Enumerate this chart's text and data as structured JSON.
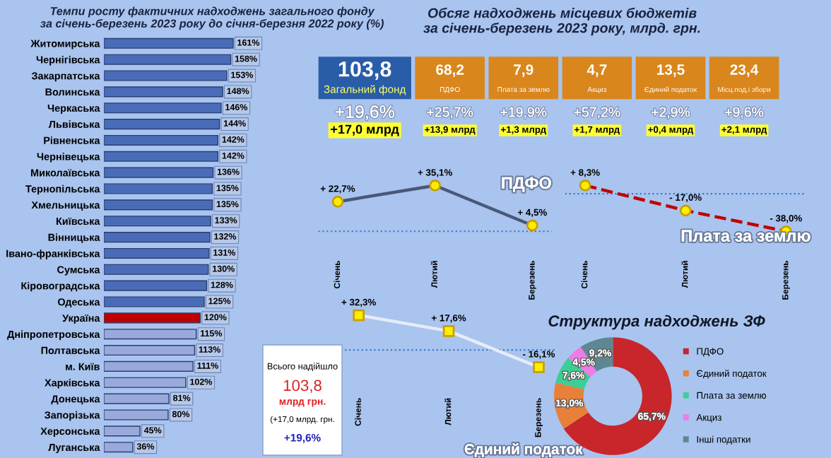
{
  "chart_data": [
    {
      "type": "bar",
      "orientation": "horizontal",
      "title": "Темпи росту фактичних надходжень загального фонду\nза січень-березень 2023 року до січня-березня 2022 року (%)",
      "categories": [
        "Житомирська",
        "Чернігівська",
        "Закарпатська",
        "Волинська",
        "Черкаська",
        "Львівська",
        "Рівненська",
        "Чернівецька",
        "Миколаївська",
        "Тернопільська",
        "Хмельницька",
        "Київська",
        "Вінницька",
        "Івано-франківська",
        "Сумська",
        "Кіровоградська",
        "Одеська",
        "Україна",
        "Дніпропетровська",
        "Полтавська",
        "м. Київ",
        "Харківська",
        "Донецька",
        "Запорізька",
        "Херсонська",
        "Луганська"
      ],
      "values": [
        161,
        158,
        153,
        148,
        146,
        144,
        142,
        142,
        136,
        135,
        135,
        133,
        132,
        131,
        130,
        128,
        125,
        120,
        115,
        113,
        111,
        102,
        81,
        80,
        45,
        36
      ],
      "value_labels": [
        "161%",
        "158%",
        "153%",
        "148%",
        "146%",
        "144%",
        "142%",
        "142%",
        "136%",
        "135%",
        "135%",
        "133%",
        "132%",
        "131%",
        "130%",
        "128%",
        "125%",
        "120%",
        "115%",
        "113%",
        "111%",
        "102%",
        "81%",
        "80%",
        "45%",
        "36%"
      ],
      "colors": [
        "#4a6cb8",
        "#4a6cb8",
        "#4a6cb8",
        "#4a6cb8",
        "#4a6cb8",
        "#4a6cb8",
        "#4a6cb8",
        "#4a6cb8",
        "#4a6cb8",
        "#4a6cb8",
        "#4a6cb8",
        "#4a6cb8",
        "#4a6cb8",
        "#4a6cb8",
        "#4a6cb8",
        "#4a6cb8",
        "#4a6cb8",
        "#c00000",
        "#9aa9dc",
        "#9aa9dc",
        "#9aa9dc",
        "#9aa9dc",
        "#9aa9dc",
        "#9aa9dc",
        "#9aa9dc",
        "#9aa9dc"
      ]
    },
    {
      "type": "other",
      "title": "Обсяг надходжень місцевих бюджетів\nза січень-березень 2023 року, млрд. грн.",
      "colors": [
        "#2a5da8",
        "#d9861c",
        "#d9861c",
        "#d9861c",
        "#d9861c",
        "#d9861c"
      ],
      "annotations": [
        "103,8",
        "Загальний фонд",
        "+19,6%",
        "+17,0 млрд",
        "68,2",
        "ПДФО",
        "+25,7%",
        "+13,9 млрд",
        "7,9",
        "Плата за землю",
        "+19,9%",
        "+1,3 млрд",
        "4,7",
        "Акциз",
        "+57,2%",
        "+1,7 млрд",
        "13,5",
        "Єдиний податок",
        "+2,9%",
        "+0,4 млрд",
        "23,4",
        "Місц.под.і збори",
        "+9,6%",
        "+2,1 млрд",
        "Всього надійшло",
        "103,8",
        "млрд грн.",
        "(+17,0 млрд. грн.",
        "+19,6%"
      ]
    },
    {
      "type": "line",
      "title": "ПДФО",
      "categories": [
        "Січень",
        "Лютий",
        "Березень"
      ],
      "series": [
        {
          "color": "#4a5878",
          "values": [
            22.7,
            35.1,
            4.5
          ],
          "value_labels": [
            "+ 22,7%",
            "+ 35,1%",
            "+ 4,5%"
          ]
        }
      ],
      "marker": "circle",
      "line_style": "solid",
      "ref_lines": [
        {
          "axis": "y",
          "value": 0,
          "color": "#3b78d0",
          "line_style": "dotted"
        }
      ]
    },
    {
      "type": "line",
      "title": "Плата за землю",
      "categories": [
        "Січень",
        "Лютий",
        "Березень"
      ],
      "series": [
        {
          "color": "#c00000",
          "values": [
            8.3,
            -17.0,
            -38.0
          ],
          "value_labels": [
            "+ 8,3%",
            "- 17,0%",
            "- 38,0%"
          ]
        }
      ],
      "marker": "circle",
      "line_style": "dashed",
      "ref_lines": [
        {
          "axis": "y",
          "value": 0,
          "color": "#3b78d0",
          "line_style": "dotted"
        }
      ]
    },
    {
      "type": "line",
      "title": "Єдиний податок",
      "categories": [
        "Січень",
        "Лютий",
        "Березень"
      ],
      "series": [
        {
          "color": "#e6ecf8",
          "values": [
            32.3,
            17.6,
            -16.1
          ],
          "value_labels": [
            "+ 32,3%",
            "+ 17,6%",
            "- 16,1%"
          ]
        }
      ],
      "marker": "square",
      "line_style": "solid",
      "ref_lines": [
        {
          "axis": "y",
          "value": 0,
          "color": "#3b78d0",
          "line_style": "dotted"
        }
      ]
    },
    {
      "type": "donut",
      "title": "Структура надходжень ЗФ",
      "categories": [
        "ПДФО",
        "Єдиний податок",
        "Плата за землю",
        "Акциз",
        "Інші податки"
      ],
      "values": [
        65.7,
        13.0,
        7.6,
        4.5,
        9.2
      ],
      "value_labels": [
        "65,7%",
        "13,0%",
        "7,6%",
        "4,5%",
        "9,2%"
      ],
      "colors": [
        "#c8262b",
        "#e8803a",
        "#3ccf95",
        "#f07ae8",
        "#5f8793"
      ],
      "legend": "right"
    }
  ]
}
